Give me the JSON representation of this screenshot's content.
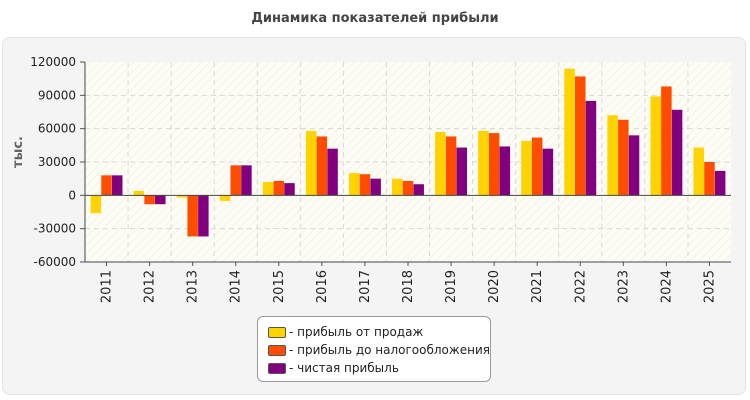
{
  "chart_data": {
    "type": "bar",
    "title": "Динамика показателей прибыли",
    "ylabel": "тыс.",
    "xlabel": "",
    "ylim": [
      -60000,
      120000
    ],
    "yticks": [
      120000,
      90000,
      60000,
      30000,
      0,
      -30000,
      -60000
    ],
    "grid": true,
    "legend_position": "bottom-center",
    "categories": [
      "2011",
      "2012",
      "2013",
      "2014",
      "2015",
      "2016",
      "2017",
      "2018",
      "2019",
      "2020",
      "2021",
      "2022",
      "2023",
      "2024",
      "2025"
    ],
    "series": [
      {
        "name": "- прибыль от продаж",
        "color": "#ffd200",
        "values": [
          -16000,
          4000,
          -2000,
          -5000,
          12000,
          58000,
          20000,
          15000,
          57000,
          58000,
          49000,
          114000,
          72000,
          89000,
          43000
        ]
      },
      {
        "name": "- прибыль до налогообложения",
        "color": "#ff4d00",
        "values": [
          18000,
          -8000,
          -37000,
          27000,
          13000,
          53000,
          19000,
          13000,
          53000,
          56000,
          52000,
          107000,
          68000,
          98000,
          30000
        ]
      },
      {
        "name": "- чистая прибыль",
        "color": "#800080",
        "values": [
          18000,
          -8000,
          -37000,
          27000,
          11000,
          42000,
          15000,
          10000,
          43000,
          44000,
          42000,
          85000,
          54000,
          77000,
          22000
        ]
      }
    ]
  }
}
